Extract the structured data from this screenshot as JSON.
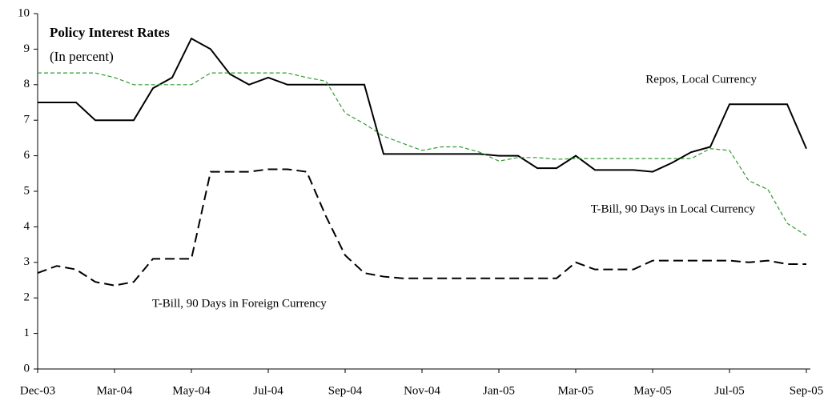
{
  "chart_data": {
    "type": "line",
    "title": "Policy Interest Rates",
    "subtitle": "(In percent)",
    "categories": [
      "Dec-03",
      null,
      null,
      null,
      "Mar-04",
      null,
      null,
      null,
      "May-04",
      null,
      null,
      null,
      "Jul-04",
      null,
      null,
      null,
      "Sep-04",
      null,
      null,
      null,
      "Nov-04",
      null,
      null,
      null,
      "Jan-05",
      null,
      null,
      null,
      "Mar-05",
      null,
      null,
      null,
      "May-05",
      null,
      null,
      null,
      "Jul-05",
      null,
      null,
      null,
      "Sep-05"
    ],
    "series": [
      {
        "name": "Repos, Local Currency",
        "color": "#000000",
        "line_style": "solid",
        "values": [
          7.5,
          7.5,
          7.5,
          7.0,
          7.0,
          7.0,
          7.9,
          8.2,
          9.3,
          9.0,
          8.3,
          8.0,
          8.2,
          8.0,
          8.0,
          8.0,
          8.0,
          8.0,
          6.05,
          6.05,
          6.05,
          6.05,
          6.05,
          6.05,
          6.0,
          6.0,
          5.65,
          5.65,
          6.0,
          5.6,
          5.6,
          5.6,
          5.55,
          5.8,
          6.1,
          6.25,
          7.45,
          7.45,
          7.45,
          7.45,
          6.2
        ]
      },
      {
        "name": "T-Bill, 90 Days in Local  Currency",
        "color": "#339933",
        "line_style": "dashed",
        "values": [
          8.33,
          8.33,
          8.33,
          8.33,
          8.2,
          8.0,
          8.0,
          8.0,
          8.0,
          8.33,
          8.33,
          8.33,
          8.33,
          8.33,
          8.2,
          8.1,
          7.2,
          6.9,
          6.55,
          6.35,
          6.15,
          6.25,
          6.25,
          6.1,
          5.85,
          5.95,
          5.95,
          5.9,
          5.92,
          5.92,
          5.92,
          5.92,
          5.92,
          5.92,
          5.92,
          6.2,
          6.15,
          5.3,
          5.05,
          4.1,
          3.75
        ]
      },
      {
        "name": "T-Bill, 90 Days in Foreign Currency",
        "color": "#000000",
        "line_style": "long-dashed",
        "values": [
          2.7,
          2.9,
          2.8,
          2.45,
          2.35,
          2.45,
          3.1,
          3.1,
          3.1,
          5.55,
          5.55,
          5.55,
          5.62,
          5.62,
          5.55,
          4.3,
          3.2,
          2.7,
          2.6,
          2.55,
          2.55,
          2.55,
          2.55,
          2.55,
          2.55,
          2.55,
          2.55,
          2.55,
          3.0,
          2.8,
          2.8,
          2.8,
          3.05,
          3.05,
          3.05,
          3.05,
          3.05,
          3.0,
          3.05,
          2.95,
          2.95
        ]
      }
    ],
    "ylim": [
      0,
      10
    ],
    "yticks": [
      0,
      1,
      2,
      3,
      4,
      5,
      6,
      7,
      8,
      9,
      10
    ]
  }
}
